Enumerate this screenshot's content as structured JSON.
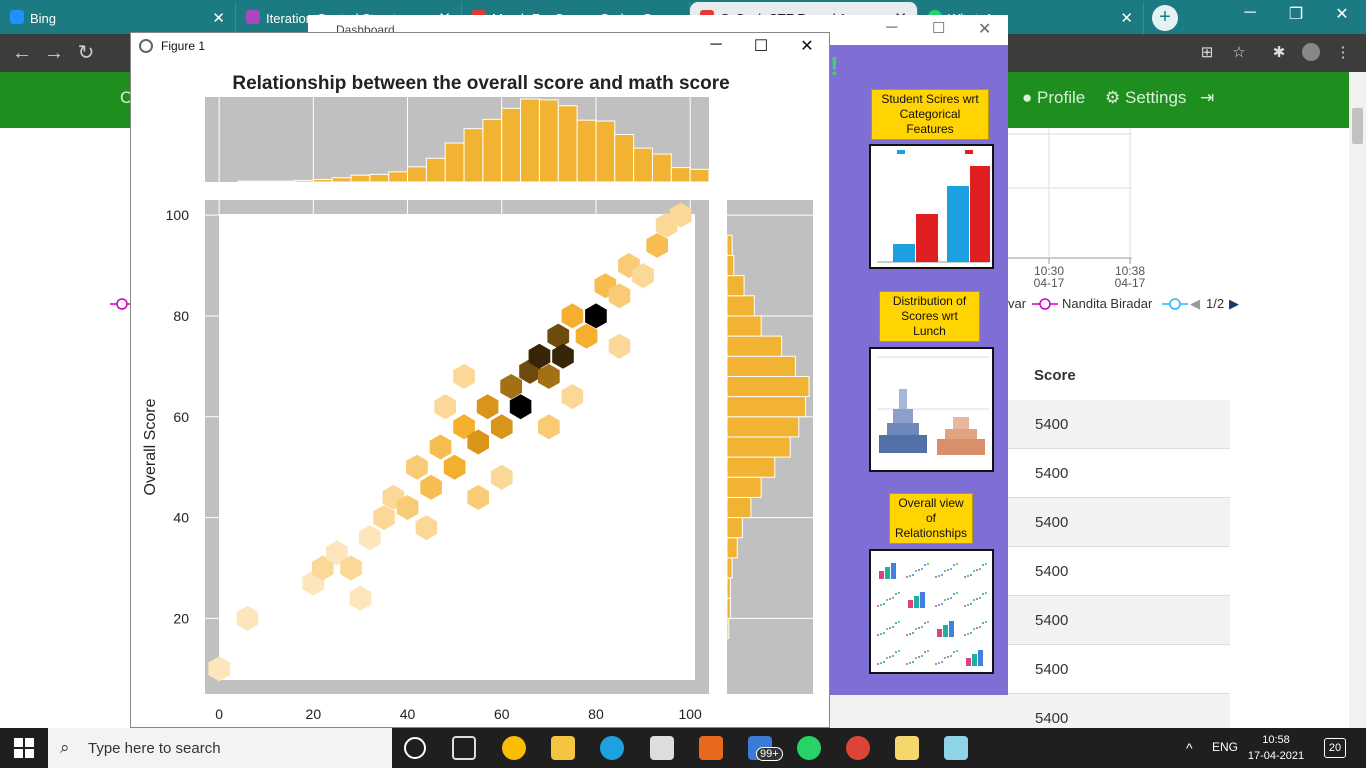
{
  "browser": {
    "tabs": [
      {
        "title": "Bing",
        "color": "#1e90ff"
      },
      {
        "title": "Iteration Control Structures",
        "color": "#ab47bc"
      },
      {
        "title": "Dashboard",
        "color": "#888888"
      },
      {
        "title": "Marsh For Secure Code - Ge…",
        "color": "#e53935"
      },
      {
        "title": "CySock CTF Round 1",
        "color": "#e53935"
      },
      {
        "title": "WhatsApp",
        "color": "#25d366"
      }
    ]
  },
  "page": {
    "nav": {
      "profile": "Profile",
      "settings": "Settings",
      "left_partial": "C"
    },
    "legend": {
      "name_partial": "var",
      "name": "Nandita Biradar",
      "page": "1/2"
    },
    "axis_times": [
      {
        "time": "10:30",
        "date": "04-17"
      },
      {
        "time": "10:38",
        "date": "04-17"
      }
    ],
    "score_header": "Score",
    "scores": [
      "5400",
      "5400",
      "5400",
      "5400",
      "5400",
      "5400",
      "5400"
    ]
  },
  "dashboard": {
    "labels": [
      "Student Scires wrt Categorical Features",
      "Distribution of Scores wrt Lunch",
      "Overall view of Relationships"
    ]
  },
  "figure": {
    "window_title": "Figure 1",
    "chart_data": {
      "type": "hexbin joint plot",
      "title": "Relationship between the overall score and math score",
      "xlabel": "",
      "ylabel": "Overall Score",
      "x_ticks": [
        0,
        20,
        40,
        60,
        80,
        100
      ],
      "y_ticks": [
        20,
        40,
        60,
        80,
        100
      ],
      "xlim": [
        -3,
        104
      ],
      "ylim": [
        5,
        103
      ],
      "colors": {
        "bar": "#f2b232",
        "panel": "#c0c0c0",
        "hex_dark": "#000000",
        "hex_light": "#fff4de"
      },
      "x_histogram": {
        "bins_start": 0,
        "bin_width": 4,
        "counts": [
          0,
          1,
          1,
          1,
          2,
          3,
          5,
          8,
          9,
          12,
          18,
          28,
          46,
          63,
          74,
          87,
          98,
          97,
          90,
          73,
          72,
          56,
          40,
          33,
          17,
          15
        ]
      },
      "y_histogram": {
        "bins_start": 12,
        "bin_width": 4,
        "counts": [
          0,
          1,
          2,
          2,
          3,
          6,
          9,
          14,
          20,
          28,
          37,
          42,
          46,
          48,
          40,
          32,
          20,
          16,
          10,
          4,
          3
        ]
      },
      "hex_density": [
        {
          "x": 0,
          "y": 10,
          "level": 1
        },
        {
          "x": 6,
          "y": 20,
          "level": 1
        },
        {
          "x": 20,
          "y": 27,
          "level": 1
        },
        {
          "x": 22,
          "y": 30,
          "level": 2
        },
        {
          "x": 25,
          "y": 33,
          "level": 1
        },
        {
          "x": 28,
          "y": 30,
          "level": 2
        },
        {
          "x": 30,
          "y": 24,
          "level": 1
        },
        {
          "x": 32,
          "y": 36,
          "level": 1
        },
        {
          "x": 35,
          "y": 40,
          "level": 2
        },
        {
          "x": 37,
          "y": 44,
          "level": 2
        },
        {
          "x": 40,
          "y": 42,
          "level": 3
        },
        {
          "x": 42,
          "y": 50,
          "level": 3
        },
        {
          "x": 45,
          "y": 46,
          "level": 4
        },
        {
          "x": 47,
          "y": 54,
          "level": 4
        },
        {
          "x": 50,
          "y": 50,
          "level": 5
        },
        {
          "x": 52,
          "y": 58,
          "level": 5
        },
        {
          "x": 55,
          "y": 55,
          "level": 6
        },
        {
          "x": 57,
          "y": 62,
          "level": 6
        },
        {
          "x": 60,
          "y": 58,
          "level": 6
        },
        {
          "x": 62,
          "y": 66,
          "level": 7
        },
        {
          "x": 64,
          "y": 62,
          "level": 10
        },
        {
          "x": 66,
          "y": 69,
          "level": 8
        },
        {
          "x": 68,
          "y": 72,
          "level": 9
        },
        {
          "x": 70,
          "y": 68,
          "level": 7
        },
        {
          "x": 72,
          "y": 76,
          "level": 8
        },
        {
          "x": 73,
          "y": 72,
          "level": 9
        },
        {
          "x": 75,
          "y": 80,
          "level": 5
        },
        {
          "x": 78,
          "y": 76,
          "level": 5
        },
        {
          "x": 80,
          "y": 80,
          "level": 10
        },
        {
          "x": 82,
          "y": 86,
          "level": 4
        },
        {
          "x": 85,
          "y": 84,
          "level": 3
        },
        {
          "x": 87,
          "y": 90,
          "level": 3
        },
        {
          "x": 90,
          "y": 88,
          "level": 2
        },
        {
          "x": 93,
          "y": 94,
          "level": 4
        },
        {
          "x": 95,
          "y": 98,
          "level": 2
        },
        {
          "x": 98,
          "y": 100,
          "level": 2
        },
        {
          "x": 55,
          "y": 44,
          "level": 3
        },
        {
          "x": 60,
          "y": 48,
          "level": 2
        },
        {
          "x": 48,
          "y": 62,
          "level": 2
        },
        {
          "x": 70,
          "y": 58,
          "level": 3
        },
        {
          "x": 75,
          "y": 64,
          "level": 2
        },
        {
          "x": 85,
          "y": 74,
          "level": 2
        },
        {
          "x": 44,
          "y": 38,
          "level": 2
        },
        {
          "x": 52,
          "y": 68,
          "level": 2
        }
      ]
    }
  },
  "taskbar": {
    "search_placeholder": "Type here to search",
    "lang": "ENG",
    "time": "10:58",
    "date": "17-04-2021",
    "badge": "99+",
    "notifications": "20"
  }
}
